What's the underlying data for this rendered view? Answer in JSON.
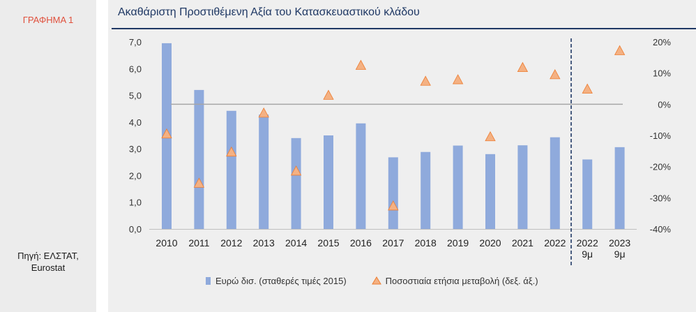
{
  "sidebar": {
    "figure_label": "ΓΡΑΦΗΜΑ 1",
    "source_line1": "Πηγή: ΕΛΣΤΑΤ,",
    "source_line2": "Eurostat"
  },
  "colors": {
    "bar": "#8faadc",
    "marker_fill": "#f4b183",
    "marker_stroke": "#ed7d31",
    "zero_line": "#a6a6a6",
    "divider": "#1f3864",
    "title": "#1f3864",
    "figure_label": "#e0503c"
  },
  "chart_data": {
    "type": "bar",
    "title": "Ακαθάριστη Προστιθέμενη Αξία του Κατασκευαστικού κλάδου",
    "categories": [
      [
        "2010"
      ],
      [
        "2011"
      ],
      [
        "2012"
      ],
      [
        "2013"
      ],
      [
        "2014"
      ],
      [
        "2015"
      ],
      [
        "2016"
      ],
      [
        "2017"
      ],
      [
        "2018"
      ],
      [
        "2019"
      ],
      [
        "2020"
      ],
      [
        "2021"
      ],
      [
        "2022"
      ],
      [
        "2022",
        "9μ"
      ],
      [
        "2023",
        "9μ"
      ]
    ],
    "series": [
      {
        "name": "Ευρώ δισ. (σταθερές τιμές 2015)",
        "type": "bar",
        "axis": "left",
        "values": [
          6.95,
          5.2,
          4.42,
          4.28,
          3.4,
          3.5,
          3.95,
          2.68,
          2.88,
          3.12,
          2.8,
          3.13,
          3.43,
          2.6,
          3.06
        ]
      },
      {
        "name": "Ποσοστιαία ετήσια μεταβολή (δεξ. άξ.)",
        "type": "marker",
        "marker": "triangle",
        "axis": "right",
        "values": [
          -9.5,
          -25.3,
          -15.3,
          -2.8,
          -21.4,
          2.9,
          12.5,
          -32.6,
          7.4,
          7.9,
          -10.4,
          11.8,
          9.5,
          4.9,
          17.2
        ]
      }
    ],
    "y_left": {
      "ylim": [
        0,
        7
      ],
      "ticks": [
        "0,0",
        "1,0",
        "2,0",
        "3,0",
        "4,0",
        "5,0",
        "6,0",
        "7,0"
      ]
    },
    "y_right": {
      "ylim": [
        -40,
        20
      ],
      "ticks": [
        "-40%",
        "-30%",
        "-20%",
        "-10%",
        "0%",
        "10%",
        "20%"
      ]
    },
    "divider_between": [
      "2022",
      "2022 9μ"
    ],
    "zero_reference_line": "right-axis 0%",
    "legend_position": "bottom",
    "grid": false
  }
}
